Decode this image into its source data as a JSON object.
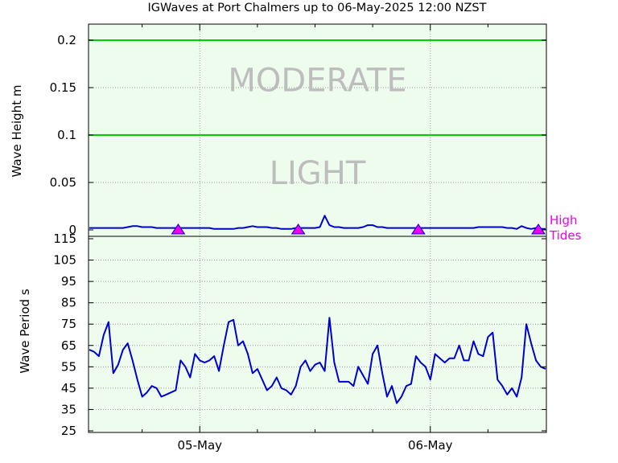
{
  "chart_data": {
    "title": "IGWaves at Port Chalmers up to 06-May-2025 12:00 NZST",
    "background": "#eefcee",
    "panels": [
      {
        "type": "line",
        "ylabel": "Wave Height m",
        "ylim": [
          0,
          0.2
        ],
        "yticks": [
          0,
          0.05,
          0.1,
          0.15,
          0.2
        ],
        "ytick_labels": [
          "0",
          "0.05",
          "0.1",
          "0.15",
          "0.2"
        ],
        "thresholds": [
          {
            "value": 0.1,
            "color": "#00cc00"
          },
          {
            "value": 0.2,
            "color": "#00cc00"
          }
        ],
        "zones": [
          {
            "label": "LIGHT",
            "center": 0.06
          },
          {
            "label": "MODERATE",
            "center": 0.158
          }
        ],
        "zone_color": "#bdbdbd",
        "series": {
          "color": "#0000cc",
          "x": [
            0,
            1,
            2,
            3,
            4,
            5,
            6,
            7,
            8,
            9,
            10,
            11,
            12,
            13,
            14,
            15,
            16,
            17,
            18,
            19,
            20,
            21,
            22,
            23,
            24,
            25,
            26,
            27,
            28,
            29,
            30,
            31,
            32,
            33,
            34,
            35,
            36,
            37,
            38,
            39,
            40,
            41,
            42,
            43,
            44,
            45,
            46,
            47,
            48,
            49,
            50,
            51,
            52,
            53,
            54,
            55,
            56,
            57,
            58,
            59,
            60,
            61,
            62,
            63,
            64,
            65,
            66,
            67,
            68,
            69,
            70,
            71,
            72,
            73,
            74,
            75,
            76,
            77,
            78,
            79,
            80,
            81,
            82,
            83,
            84,
            85,
            86,
            87,
            88,
            89,
            90,
            91,
            92,
            93,
            94,
            95
          ],
          "values": [
            0.002,
            0.002,
            0.002,
            0.002,
            0.002,
            0.002,
            0.002,
            0.002,
            0.003,
            0.004,
            0.004,
            0.003,
            0.003,
            0.003,
            0.002,
            0.002,
            0.002,
            0.002,
            0.002,
            0.002,
            0.002,
            0.002,
            0.002,
            0.002,
            0.002,
            0.002,
            0.001,
            0.001,
            0.001,
            0.001,
            0.001,
            0.002,
            0.002,
            0.003,
            0.004,
            0.003,
            0.003,
            0.003,
            0.002,
            0.002,
            0.001,
            0.001,
            0.001,
            0.002,
            0.002,
            0.002,
            0.002,
            0.002,
            0.003,
            0.015,
            0.005,
            0.003,
            0.003,
            0.002,
            0.002,
            0.002,
            0.002,
            0.003,
            0.005,
            0.005,
            0.003,
            0.003,
            0.002,
            0.002,
            0.002,
            0.002,
            0.002,
            0.002,
            0.002,
            0.002,
            0.002,
            0.002,
            0.002,
            0.002,
            0.002,
            0.002,
            0.002,
            0.002,
            0.002,
            0.002,
            0.002,
            0.003,
            0.003,
            0.003,
            0.003,
            0.003,
            0.003,
            0.002,
            0.002,
            0.001,
            0.004,
            0.002,
            0.001,
            0.002,
            0.001,
            0.001
          ]
        },
        "high_tides_x": [
          18.5,
          43.5,
          68.5,
          93.5
        ],
        "high_tides_color": "#ee00ee",
        "high_tides_label": [
          "High",
          "Tides"
        ]
      },
      {
        "type": "line",
        "ylabel": "Wave Period s",
        "ylim": [
          25,
          115
        ],
        "yticks": [
          25,
          35,
          45,
          55,
          65,
          75,
          85,
          95,
          105,
          115
        ],
        "ytick_labels": [
          "25",
          "35",
          "45",
          "55",
          "65",
          "75",
          "85",
          "95",
          "105",
          "115"
        ],
        "series": {
          "color": "#0000cc",
          "x": [
            0,
            1,
            2,
            3,
            4,
            5,
            6,
            7,
            8,
            9,
            10,
            11,
            12,
            13,
            14,
            15,
            16,
            17,
            18,
            19,
            20,
            21,
            22,
            23,
            24,
            25,
            26,
            27,
            28,
            29,
            30,
            31,
            32,
            33,
            34,
            35,
            36,
            37,
            38,
            39,
            40,
            41,
            42,
            43,
            44,
            45,
            46,
            47,
            48,
            49,
            50,
            51,
            52,
            53,
            54,
            55,
            56,
            57,
            58,
            59,
            60,
            61,
            62,
            63,
            64,
            65,
            66,
            67,
            68,
            69,
            70,
            71,
            72,
            73,
            74,
            75,
            76,
            77,
            78,
            79,
            80,
            81,
            82,
            83,
            84,
            85,
            86,
            87,
            88,
            89,
            90,
            91,
            92,
            93,
            94,
            95
          ],
          "values": [
            63,
            62,
            60,
            70,
            76,
            52,
            56,
            63,
            66,
            58,
            49,
            41,
            43,
            46,
            45,
            41,
            42,
            43,
            44,
            58,
            55,
            50,
            61,
            58,
            57,
            58,
            60,
            53,
            65,
            76,
            77,
            65,
            67,
            61,
            52,
            54,
            49,
            44,
            46,
            50,
            45,
            44,
            42,
            46,
            55,
            58,
            53,
            56,
            57,
            53,
            78,
            57,
            48,
            48,
            48,
            46,
            55,
            51,
            47,
            61,
            65,
            52,
            41,
            46,
            38,
            41,
            46,
            47,
            60,
            57,
            55,
            49,
            61,
            59,
            57,
            59,
            59,
            65,
            58,
            58,
            67,
            61,
            60,
            69,
            71,
            49,
            46,
            42,
            45,
            41,
            50,
            75,
            66,
            58,
            55,
            54
          ]
        }
      }
    ],
    "x_axis": {
      "type": "time",
      "n_points": 96,
      "major_ticks": [
        {
          "x": 23,
          "label": "05-May"
        },
        {
          "x": 71,
          "label": "06-May"
        }
      ],
      "minor_ticks": [
        11,
        35,
        47,
        59,
        83
      ]
    }
  }
}
